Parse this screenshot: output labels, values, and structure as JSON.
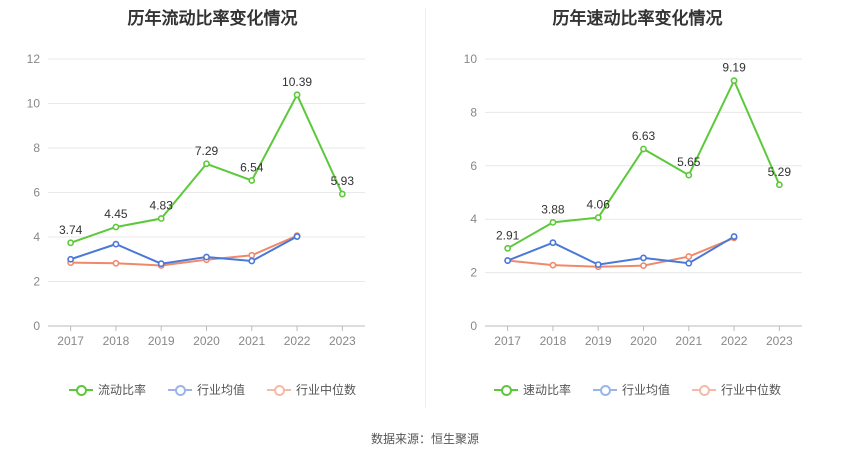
{
  "source": "数据来源：恒生聚源",
  "chart_data": [
    {
      "type": "line",
      "title": "历年流动比率变化情况",
      "categories": [
        "2017",
        "2018",
        "2019",
        "2020",
        "2021",
        "2022",
        "2023"
      ],
      "ylim": [
        0,
        12
      ],
      "yticks": [
        0,
        2,
        4,
        6,
        8,
        10,
        12
      ],
      "grid": true,
      "legend_position": "bottom",
      "series": [
        {
          "name": "流动比率",
          "color": "#5cc93a",
          "values": [
            3.74,
            4.45,
            4.83,
            7.29,
            6.54,
            10.39,
            5.93
          ],
          "labels": [
            "3.74",
            "4.45",
            "4.83",
            "7.29",
            "6.54",
            "10.39",
            "5.93"
          ]
        },
        {
          "name": "行业均值",
          "color": "#4a78d9",
          "values": [
            3.0,
            3.68,
            2.8,
            3.1,
            2.92,
            4.02,
            null
          ]
        },
        {
          "name": "行业中位数",
          "color": "#f0896a",
          "values": [
            2.85,
            2.82,
            2.72,
            2.98,
            3.18,
            4.06,
            null
          ]
        }
      ]
    },
    {
      "type": "line",
      "title": "历年速动比率变化情况",
      "categories": [
        "2017",
        "2018",
        "2019",
        "2020",
        "2021",
        "2022",
        "2023"
      ],
      "ylim": [
        0,
        10
      ],
      "yticks": [
        0,
        2,
        4,
        6,
        8,
        10
      ],
      "grid": true,
      "legend_position": "bottom",
      "series": [
        {
          "name": "速动比率",
          "color": "#5cc93a",
          "values": [
            2.91,
            3.88,
            4.06,
            6.63,
            5.65,
            9.19,
            5.29
          ],
          "labels": [
            "2.91",
            "3.88",
            "4.06",
            "6.63",
            "5.65",
            "9.19",
            "5.29"
          ]
        },
        {
          "name": "行业均值",
          "color": "#4a78d9",
          "values": [
            2.45,
            3.12,
            2.3,
            2.55,
            2.35,
            3.35,
            null
          ]
        },
        {
          "name": "行业中位数",
          "color": "#f0896a",
          "values": [
            2.45,
            2.28,
            2.22,
            2.26,
            2.6,
            3.3,
            null
          ]
        }
      ]
    }
  ]
}
